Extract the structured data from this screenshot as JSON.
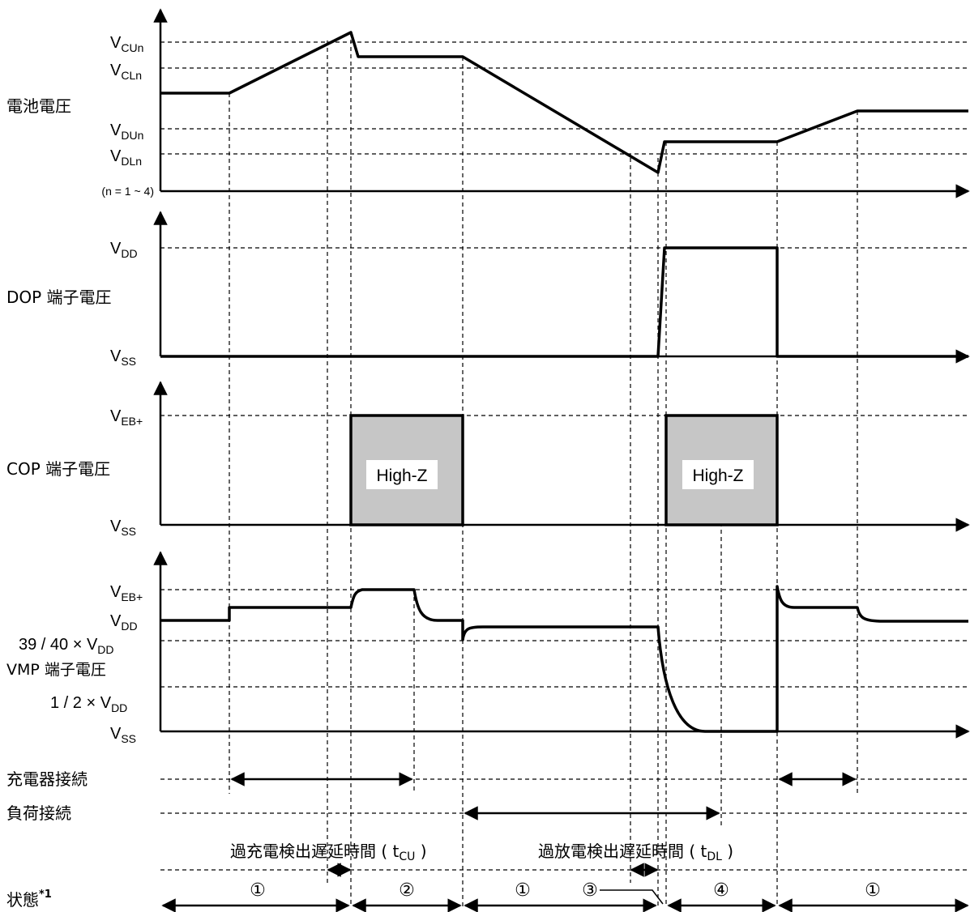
{
  "battery": {
    "label": "電池電圧",
    "note": "(n = 1 ~ 4)",
    "v_cu": {
      "main": "V",
      "sub": "CUn"
    },
    "v_cl": {
      "main": "V",
      "sub": "CLn"
    },
    "v_du": {
      "main": "V",
      "sub": "DUn"
    },
    "v_dl": {
      "main": "V",
      "sub": "DLn"
    }
  },
  "dop": {
    "label": "DOP 端子電圧",
    "v_dd": {
      "main": "V",
      "sub": "DD"
    },
    "v_ss": {
      "main": "V",
      "sub": "SS"
    }
  },
  "cop": {
    "label": "COP 端子電圧",
    "v_eb": {
      "main": "V",
      "sub": "EB+"
    },
    "v_ss": {
      "main": "V",
      "sub": "SS"
    },
    "highz_1": "High-Z",
    "highz_2": "High-Z"
  },
  "vmp": {
    "label": "VMP 端子電圧",
    "v_eb": {
      "main": "V",
      "sub": "EB+"
    },
    "v_dd": {
      "main": "V",
      "sub": "DD"
    },
    "v_3940": {
      "main": "39 / 40 × V",
      "sub": "DD"
    },
    "v_half": {
      "main": "1 / 2 × V",
      "sub": "DD"
    },
    "v_ss": {
      "main": "V",
      "sub": "SS"
    }
  },
  "connections": {
    "charger": "充電器接続",
    "load": "負荷接続"
  },
  "delays": {
    "overcharge": {
      "prefix": "過充電検出遅延時間 ( t",
      "sub": "CU",
      "suffix": " )"
    },
    "overdischarge": {
      "prefix": "過放電検出遅延時間 ( t",
      "sub": "DL",
      "suffix": " )"
    }
  },
  "state": {
    "label": "状態",
    "footnote": "*1",
    "markers": [
      "①",
      "②",
      "①",
      "③",
      "④",
      "①"
    ]
  }
}
